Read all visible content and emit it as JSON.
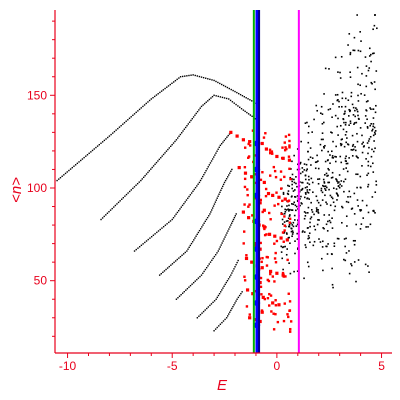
{
  "chart_data": {
    "type": "scatter",
    "title": "",
    "xlabel": "E",
    "ylabel": "<n>",
    "xlim": [
      -10.6,
      5.5
    ],
    "ylim": [
      11,
      196
    ],
    "x_ticks": [
      -10,
      -5,
      0,
      5
    ],
    "y_ticks": [
      50,
      100,
      150
    ],
    "grid": false,
    "legend": "none",
    "colors": {
      "axis": "#e8001c",
      "black_points": "#000000",
      "red_points": "#ff0000",
      "line_green": "#00b000",
      "line_blue": "#0000ff",
      "line_dark": "#000088",
      "line_magenta": "#ff00ff"
    },
    "vertical_lines": [
      {
        "x": -1.1,
        "color": "#00b000"
      },
      {
        "x": -0.95,
        "color": "#0000ff"
      },
      {
        "x": -0.85,
        "color": "#000088"
      },
      {
        "x": 1.05,
        "color": "#ff00ff"
      }
    ],
    "series": [
      {
        "kind": "black-curves",
        "curves": [
          [
            [
              -10.5,
              104
            ],
            [
              -8,
              128
            ],
            [
              -6,
              148
            ],
            [
              -4.6,
              160
            ],
            [
              -4.0,
              161
            ],
            [
              -3.0,
              158
            ],
            [
              -2.0,
              152
            ],
            [
              -1.2,
              147
            ],
            [
              -0.9,
              145
            ]
          ],
          [
            [
              -8.4,
              83
            ],
            [
              -6.5,
              104
            ],
            [
              -4.8,
              126
            ],
            [
              -3.6,
              144
            ],
            [
              -3.0,
              150
            ],
            [
              -2.3,
              148
            ],
            [
              -1.6,
              142
            ],
            [
              -1.1,
              138
            ],
            [
              -0.9,
              136
            ]
          ],
          [
            [
              -6.8,
              66
            ],
            [
              -5.0,
              83
            ],
            [
              -3.7,
              103
            ],
            [
              -2.7,
              123
            ],
            [
              -2.2,
              130
            ]
          ],
          [
            [
              -5.6,
              53
            ],
            [
              -4.3,
              66
            ],
            [
              -3.2,
              86
            ],
            [
              -2.5,
              103
            ],
            [
              -2.1,
              111
            ]
          ],
          [
            [
              -4.8,
              40
            ],
            [
              -3.6,
              53
            ],
            [
              -2.8,
              66
            ],
            [
              -2.2,
              80
            ],
            [
              -1.9,
              87
            ]
          ],
          [
            [
              -3.8,
              30
            ],
            [
              -2.9,
              40
            ],
            [
              -2.2,
              53
            ],
            [
              -1.8,
              62
            ]
          ],
          [
            [
              -3.0,
              23
            ],
            [
              -2.4,
              30
            ],
            [
              -1.9,
              40
            ],
            [
              -1.6,
              45
            ]
          ]
        ]
      },
      {
        "kind": "red-points",
        "points": [
          [
            -2.2,
            130
          ],
          [
            -1.9,
            128
          ],
          [
            -1.6,
            126
          ],
          [
            -1.3,
            125
          ],
          [
            -1.0,
            124
          ],
          [
            -0.7,
            124
          ],
          [
            -1.8,
            111
          ],
          [
            -1.5,
            108
          ],
          [
            -1.2,
            106
          ],
          [
            -0.9,
            104
          ],
          [
            -0.6,
            103
          ],
          [
            -1.6,
            87
          ],
          [
            -1.35,
            84
          ],
          [
            -1.1,
            82
          ],
          [
            -0.85,
            80
          ],
          [
            -0.6,
            79
          ],
          [
            -1.45,
            62
          ],
          [
            -1.2,
            60
          ],
          [
            -0.95,
            58
          ],
          [
            -0.7,
            57
          ],
          [
            -1.4,
            45
          ],
          [
            -1.15,
            43
          ],
          [
            -0.9,
            42
          ],
          [
            -0.65,
            41
          ],
          [
            -1.3,
            30
          ],
          [
            -1.05,
            29
          ],
          [
            -0.8,
            28
          ],
          [
            -0.5,
            121
          ],
          [
            -0.3,
            119
          ],
          [
            0.0,
            117
          ],
          [
            0.3,
            116
          ],
          [
            0.6,
            115
          ],
          [
            -0.4,
            97
          ],
          [
            -0.2,
            96
          ],
          [
            0.1,
            95
          ],
          [
            0.4,
            94
          ],
          [
            -0.35,
            75
          ],
          [
            -0.1,
            74
          ],
          [
            0.2,
            73
          ],
          [
            0.5,
            72
          ],
          [
            -0.3,
            55
          ],
          [
            0.0,
            54
          ],
          [
            0.3,
            53
          ],
          [
            -0.2,
            38
          ],
          [
            0.1,
            37
          ],
          [
            -1.0,
            96
          ],
          [
            -0.8,
            92
          ],
          [
            -0.6,
            88
          ],
          [
            -1.0,
            70
          ],
          [
            -0.8,
            67
          ],
          [
            -1.0,
            52
          ],
          [
            -0.8,
            49
          ],
          [
            -0.9,
            35
          ],
          [
            -0.7,
            33
          ]
        ]
      },
      {
        "kind": "black-scatter",
        "density_note": "dense scattered black dots for E in [0.2, 4.8] and <n> in [40, 195]"
      }
    ]
  }
}
